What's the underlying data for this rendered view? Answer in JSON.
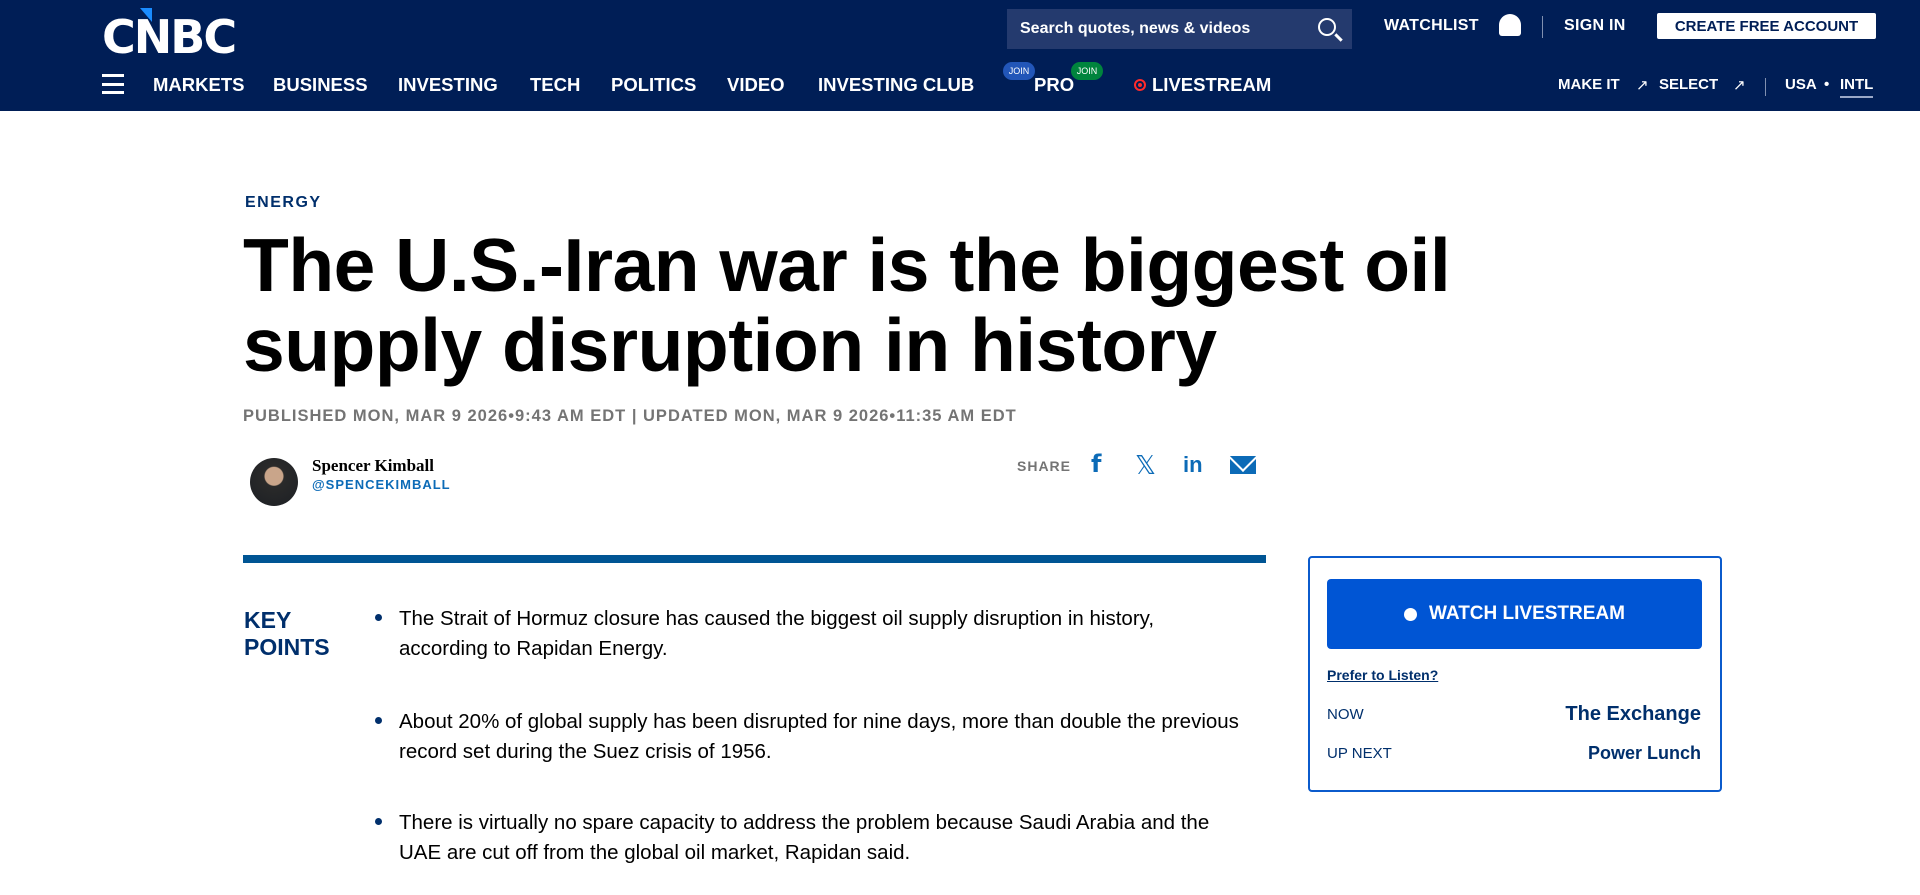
{
  "header": {
    "logo": "CNBC",
    "search_placeholder": "Search quotes, news & videos",
    "watchlist": "WATCHLIST",
    "sign_in": "SIGN IN",
    "create_account": "CREATE FREE ACCOUNT",
    "nav": [
      "MARKETS",
      "BUSINESS",
      "INVESTING",
      "TECH",
      "POLITICS",
      "VIDEO",
      "INVESTING CLUB",
      "PRO",
      "LIVESTREAM"
    ],
    "join_badge": "JOIN",
    "join_colors": {
      "investing_club": "#2256b8",
      "pro": "#00843d"
    },
    "right_nav": {
      "make_it": "MAKE IT",
      "select": "SELECT",
      "usa": "USA",
      "separator": "•",
      "intl": "INTL"
    }
  },
  "article": {
    "section": "ENERGY",
    "title": "The U.S.-Iran war is the biggest oil supply disruption in history",
    "dates": "PUBLISHED MON, MAR 9 2026•9:43 AM EDT | UPDATED MON, MAR 9 2026•11:35 AM EDT",
    "author": "Spencer Kimball",
    "handle": "@SPENCEKIMBALL",
    "share_label": "SHARE",
    "share_icons": [
      "facebook-icon",
      "x-icon",
      "linkedin-icon",
      "email-icon"
    ],
    "key_points_label_1": "KEY",
    "key_points_label_2": "POINTS",
    "key_points": [
      "The Strait of Hormuz closure has caused the biggest oil supply disruption in history, according to Rapidan Energy.",
      "About 20% of global supply has been disrupted for nine days, more than double the previous record set during the Suez crisis of 1956.",
      "There is virtually no spare capacity to address the problem because Saudi Arabia and the UAE are cut off from the global oil market, Rapidan said."
    ]
  },
  "livestream": {
    "button": "WATCH LIVESTREAM",
    "prefer": "Prefer to Listen?",
    "now_label": "NOW",
    "now_show": "The Exchange",
    "next_label": "UP NEXT",
    "next_show": "Power Lunch"
  }
}
